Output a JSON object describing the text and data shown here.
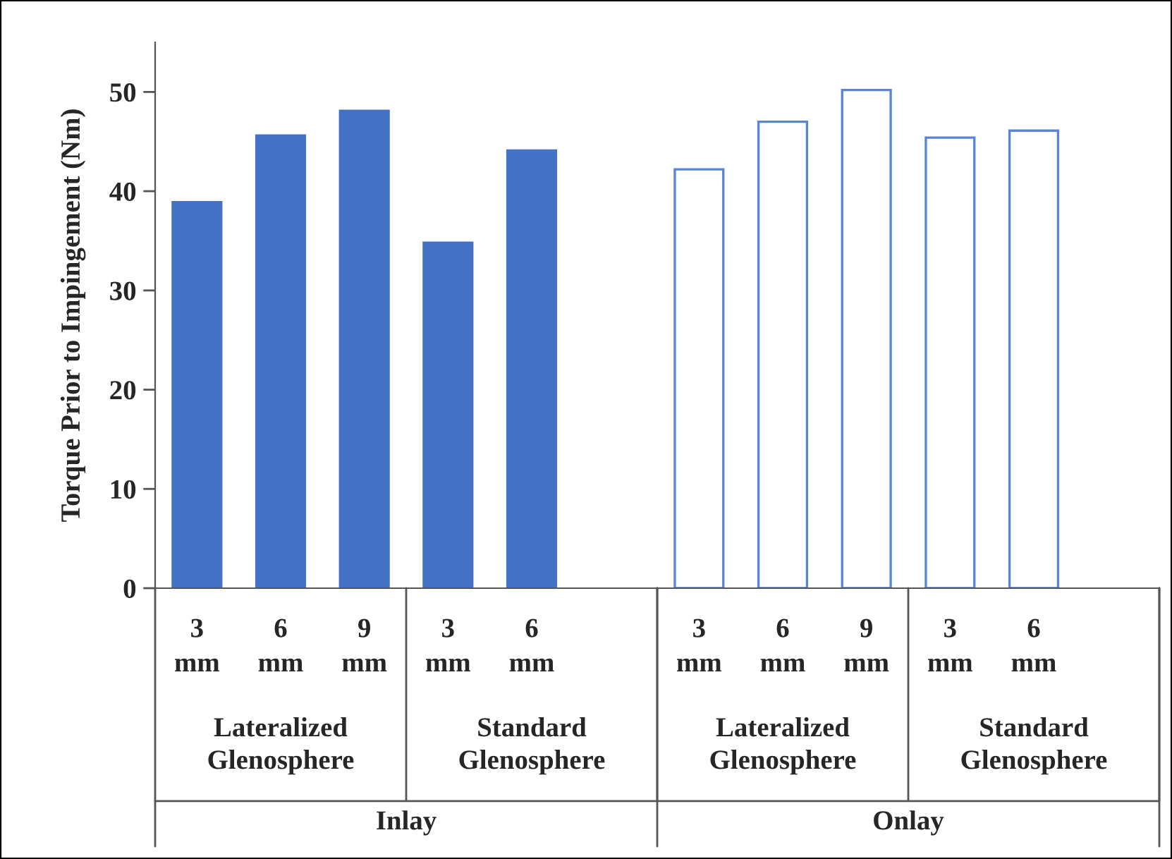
{
  "chart_data": {
    "type": "bar",
    "ylabel": "Torque Prior to Impingement (Nm)",
    "categories": [
      "3 mm",
      "6 mm",
      "9 mm",
      "3 mm",
      "6 mm",
      null,
      "3 mm",
      "6 mm",
      "9 mm",
      "3 mm",
      "6 mm",
      null
    ],
    "series": [
      {
        "color": "#4472c4",
        "values": [
          38.9,
          45.6,
          48.1,
          34.8,
          44.1,
          null,
          null,
          null,
          null,
          null,
          null,
          null
        ]
      },
      {
        "color": "#5b84d6",
        "colors": [
          "#ffffff",
          "#ffffff",
          "#ffffff",
          "#ffffff",
          "#ffffff",
          "#ffffff",
          "#ffffff",
          "#ffffff",
          "#ffffff",
          "#ffffff",
          "#ffffff",
          "#ffffff"
        ],
        "values": [
          null,
          null,
          null,
          null,
          null,
          null,
          42.2,
          47.0,
          50.2,
          45.4,
          46.1,
          null
        ]
      }
    ],
    "annotations": [
      "Lateralized Glenosphere",
      "Standard Glenosphere",
      "Lateralized Glenosphere",
      "Standard Glenosphere",
      "Inlay",
      "Onlay"
    ],
    "ylim": [
      0,
      55
    ],
    "yticks": [
      0,
      10,
      20,
      30,
      40,
      50
    ],
    "grid": false,
    "legend": false
  }
}
